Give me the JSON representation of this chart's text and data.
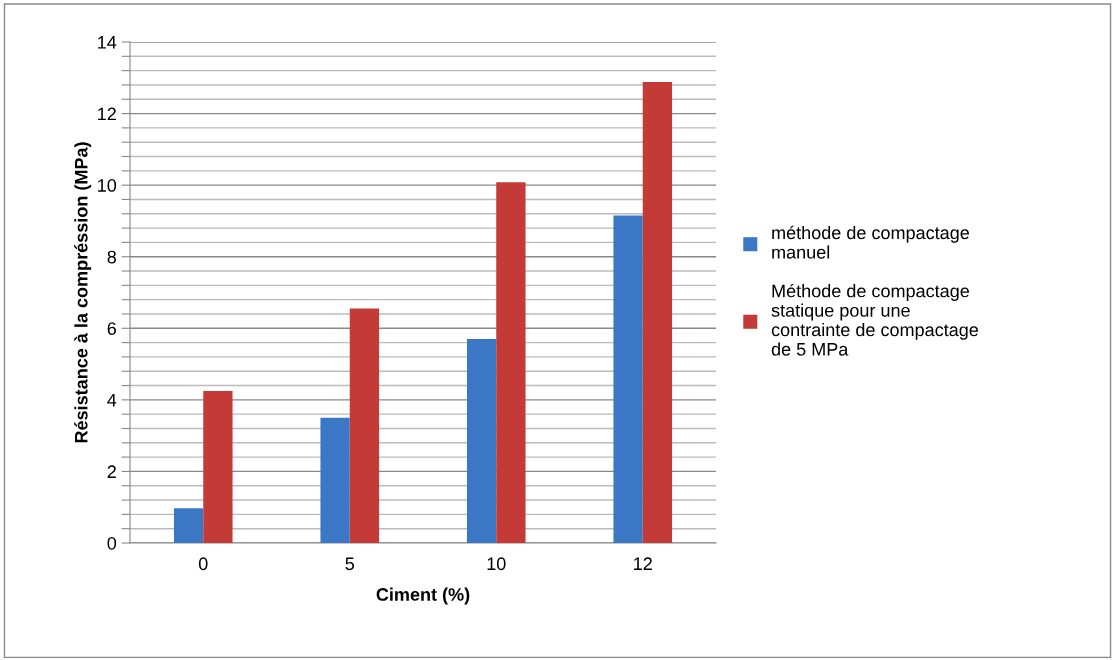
{
  "chart_data": {
    "type": "bar",
    "xlabel": "Ciment (%)",
    "ylabel": "Résistance à la compréssion (MPa)",
    "categories": [
      "0",
      "5",
      "10",
      "12"
    ],
    "series": [
      {
        "name": "méthode de compactage manuel",
        "color": "#3a78c6",
        "values": [
          0.97,
          3.5,
          5.7,
          9.15
        ]
      },
      {
        "name": "Méthode de compactage statique pour une contrainte de compactage de 5 MPa",
        "color": "#c43a36",
        "values": [
          4.25,
          6.55,
          10.08,
          12.88
        ]
      }
    ],
    "ylim": [
      0,
      14
    ],
    "yticks": [
      0,
      {
        "value": 0.4,
        "label": null
      },
      {
        "value": 0.8,
        "label": null
      },
      {
        "value": 1.2,
        "label": null
      },
      {
        "value": 1.6,
        "label": null
      },
      2,
      {
        "value": 2.4,
        "label": null
      },
      {
        "value": 2.8,
        "label": null
      },
      {
        "value": 3.2,
        "label": null
      },
      {
        "value": 3.6,
        "label": null
      },
      4,
      {
        "value": 4.4,
        "label": null
      },
      {
        "value": 4.8,
        "label": null
      },
      {
        "value": 5.2,
        "label": null
      },
      {
        "value": 5.6,
        "label": null
      },
      6,
      {
        "value": 6.4,
        "label": null
      },
      {
        "value": 6.8,
        "label": null
      },
      {
        "value": 7.2,
        "label": null
      },
      {
        "value": 7.6,
        "label": null
      },
      8,
      {
        "value": 8.4,
        "label": null
      },
      {
        "value": 8.8,
        "label": null
      },
      {
        "value": 9.2,
        "label": null
      },
      {
        "value": 9.6,
        "label": null
      },
      10,
      {
        "value": 10.4,
        "label": null
      },
      {
        "value": 10.8,
        "label": null
      },
      {
        "value": 11.2,
        "label": null
      },
      {
        "value": 11.6,
        "label": null
      },
      12,
      {
        "value": 12.4,
        "label": null
      },
      {
        "value": 12.8,
        "label": null
      },
      {
        "value": 13.2,
        "label": null
      },
      {
        "value": 13.6,
        "label": null
      },
      14
    ],
    "grid": "y",
    "legend": "right"
  }
}
